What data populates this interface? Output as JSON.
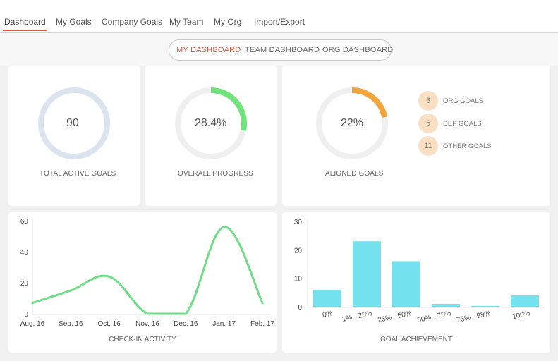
{
  "nav": {
    "tabs": [
      {
        "label": "Dashboard",
        "active": true
      },
      {
        "label": "My Goals"
      },
      {
        "label": "Company Goals"
      },
      {
        "label": "My Team"
      },
      {
        "label": "My Org"
      },
      {
        "label": "Import/Export"
      }
    ]
  },
  "dashboard_toggle": {
    "options": [
      "MY DASHBOARD",
      "TEAM DASHBOARD",
      "ORG DASHBOARD"
    ],
    "selected": "MY DASHBOARD"
  },
  "colors": {
    "accent": "#e0553b",
    "total_ring": "#dbe4ee",
    "progress_ring": "#6fe37a",
    "aligned_ring": "#f3a43a",
    "track": "#efefef",
    "bar": "#74e2ee",
    "line": "#6fdc86",
    "badge": "#f9e0c4"
  },
  "stats": {
    "total_active_goals": {
      "value": "90",
      "label": "TOTAL ACTIVE GOALS"
    },
    "overall_progress": {
      "value": "28.4%",
      "label": "OVERALL PROGRESS",
      "fraction": 0.284
    },
    "aligned_goals": {
      "value": "22%",
      "label": "ALIGNED GOALS",
      "fraction": 0.22
    }
  },
  "goal_breakdown": [
    {
      "count": "3",
      "label": "ORG GOALS"
    },
    {
      "count": "6",
      "label": "DEP GOALS"
    },
    {
      "count": "11",
      "label": "OTHER GOALS"
    }
  ],
  "chart_data": [
    {
      "type": "line",
      "caption": "CHECK-IN ACTIVITY",
      "categories": [
        "Aug, 16",
        "Sep, 16",
        "Oct, 16",
        "Nov, 16",
        "Dec, 16",
        "Jan, 17",
        "Feb, 17"
      ],
      "values": [
        7,
        15,
        24,
        0,
        0,
        56,
        7
      ],
      "yticks": [
        "0",
        "20",
        "40",
        "60"
      ],
      "ylim": [
        0,
        60
      ]
    },
    {
      "type": "bar",
      "caption": "GOAL ACHIEVEMENT",
      "categories": [
        "0%",
        "1% - 25%",
        "25% - 50%",
        "50% - 75%",
        "75% - 99%",
        "100%"
      ],
      "values": [
        6,
        23,
        16,
        1,
        0,
        4
      ],
      "yticks": [
        "0",
        "10",
        "20",
        "30"
      ],
      "ylim": [
        0,
        30
      ]
    }
  ]
}
